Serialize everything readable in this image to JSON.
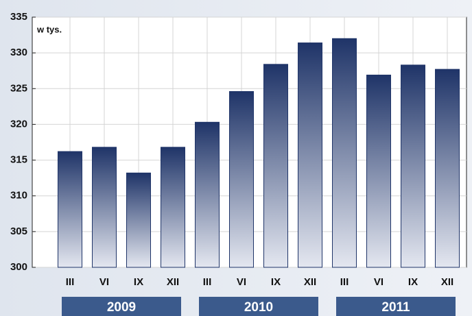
{
  "chart_data": {
    "type": "bar",
    "annotation": "w tys.",
    "categories": [
      "III",
      "VI",
      "IX",
      "XII",
      "III",
      "VI",
      "IX",
      "XII",
      "III",
      "VI",
      "IX",
      "XII"
    ],
    "values": [
      316.2,
      316.8,
      313.2,
      316.8,
      320.3,
      324.6,
      328.4,
      331.4,
      332.0,
      326.9,
      328.3,
      327.7
    ],
    "group_labels": [
      "2009",
      "2010",
      "2011"
    ],
    "ylim": [
      300,
      335
    ],
    "yticks": [
      300,
      305,
      310,
      315,
      320,
      325,
      330,
      335
    ],
    "grid": true,
    "color": "#1f3468"
  }
}
